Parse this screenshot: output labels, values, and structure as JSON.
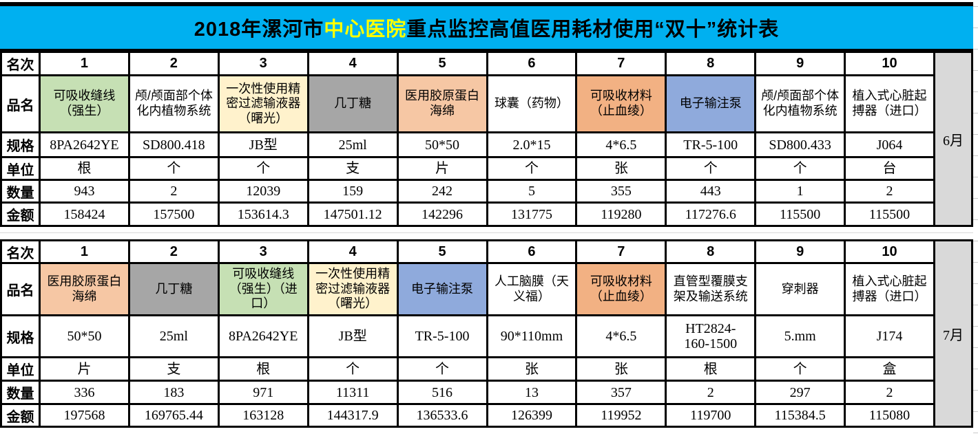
{
  "title": {
    "prefix": "2018年漯河市",
    "highlight": "中心医院",
    "suffix": "重点监控高值医用耗材使用“双十”统计表"
  },
  "colors": {
    "title_bg": "#00B0F0",
    "title_highlight_text": "#FFFF00",
    "border": "#000000",
    "month_bg": "#D9D9D9",
    "palette": {
      "white": "#FFFFFF",
      "green": "#C6E0B4",
      "yellow": "#FFF2CC",
      "gray": "#A6A6A6",
      "salmon": "#F6C7A4",
      "orange": "#F2B183",
      "blue": "#8FAADC"
    }
  },
  "row_labels": {
    "rank": "名次",
    "name": "品名",
    "spec": "规格",
    "unit": "单位",
    "qty": "数量",
    "amount": "金额"
  },
  "tables": [
    {
      "month": "6月",
      "items": [
        {
          "rank": "1",
          "name": "可吸收缝线（强生）",
          "bg": "green",
          "spec": "8PA2642YE",
          "unit": "根",
          "qty": "943",
          "amount": "158424"
        },
        {
          "rank": "2",
          "name": "颅/颅面部个体化内植物系统",
          "bg": "white",
          "spec": "SD800.418",
          "unit": "个",
          "qty": "2",
          "amount": "157500"
        },
        {
          "rank": "3",
          "name": "一次性使用精密过滤输液器（曙光）",
          "bg": "yellow",
          "spec": "JB型",
          "unit": "个",
          "qty": "12039",
          "amount": "153614.3"
        },
        {
          "rank": "4",
          "name": "几丁糖",
          "bg": "gray",
          "spec": "25ml",
          "unit": "支",
          "qty": "159",
          "amount": "147501.12"
        },
        {
          "rank": "5",
          "name": "医用胶原蛋白海绵",
          "bg": "salmon",
          "spec": "50*50",
          "unit": "片",
          "qty": "242",
          "amount": "142296"
        },
        {
          "rank": "6",
          "name": "球囊（药物）",
          "bg": "white",
          "spec": "2.0*15",
          "unit": "个",
          "qty": "5",
          "amount": "131775"
        },
        {
          "rank": "7",
          "name": "可吸收材料（止血绫）",
          "bg": "orange",
          "spec": "4*6.5",
          "unit": "张",
          "qty": "355",
          "amount": "119280"
        },
        {
          "rank": "8",
          "name": "电子输注泵",
          "bg": "blue",
          "spec": "TR-5-100",
          "unit": "个",
          "qty": "443",
          "amount": "117276.6"
        },
        {
          "rank": "9",
          "name": "颅/颅面部个体化内植物系统",
          "bg": "white",
          "spec": "SD800.433",
          "unit": "个",
          "qty": "1",
          "amount": "115500"
        },
        {
          "rank": "10",
          "name": "植入式心脏起搏器（进口）",
          "bg": "white",
          "spec": "J064",
          "unit": "台",
          "qty": "2",
          "amount": "115500"
        }
      ]
    },
    {
      "month": "7月",
      "items": [
        {
          "rank": "1",
          "name": "医用胶原蛋白海绵",
          "bg": "salmon",
          "spec": "50*50",
          "unit": "片",
          "qty": "336",
          "amount": "197568"
        },
        {
          "rank": "2",
          "name": "几丁糖",
          "bg": "gray",
          "spec": "25ml",
          "unit": "支",
          "qty": "183",
          "amount": "169765.44"
        },
        {
          "rank": "3",
          "name": "可吸收缝线（强生）（进口）",
          "bg": "green",
          "spec": "8PA2642YE",
          "unit": "根",
          "qty": "971",
          "amount": "163128"
        },
        {
          "rank": "4",
          "name": "一次性使用精密过滤输液器（曙光）",
          "bg": "yellow",
          "spec": "JB型",
          "unit": "个",
          "qty": "11311",
          "amount": "144317.9"
        },
        {
          "rank": "5",
          "name": "电子输注泵",
          "bg": "blue",
          "spec": "TR-5-100",
          "unit": "个",
          "qty": "516",
          "amount": "136533.6"
        },
        {
          "rank": "6",
          "name": "人工脑膜（天义福）",
          "bg": "white",
          "spec": "90*110mm",
          "unit": "张",
          "qty": "13",
          "amount": "126399"
        },
        {
          "rank": "7",
          "name": "可吸收材料（止血绫）",
          "bg": "orange",
          "spec": "4*6.5",
          "unit": "张",
          "qty": "357",
          "amount": "119952"
        },
        {
          "rank": "8",
          "name": "直管型覆膜支架及输送系统",
          "bg": "white",
          "spec": "HT2824-\n160-1500",
          "unit": "根",
          "qty": "2",
          "amount": "119700"
        },
        {
          "rank": "9",
          "name": "穿刺器",
          "bg": "white",
          "spec": "5.mm",
          "unit": "个",
          "qty": "297",
          "amount": "115384.5"
        },
        {
          "rank": "10",
          "name": "植入式心脏起搏器（进口）",
          "bg": "white",
          "spec": "J174",
          "unit": "盒",
          "qty": "2",
          "amount": "115080"
        }
      ]
    }
  ]
}
